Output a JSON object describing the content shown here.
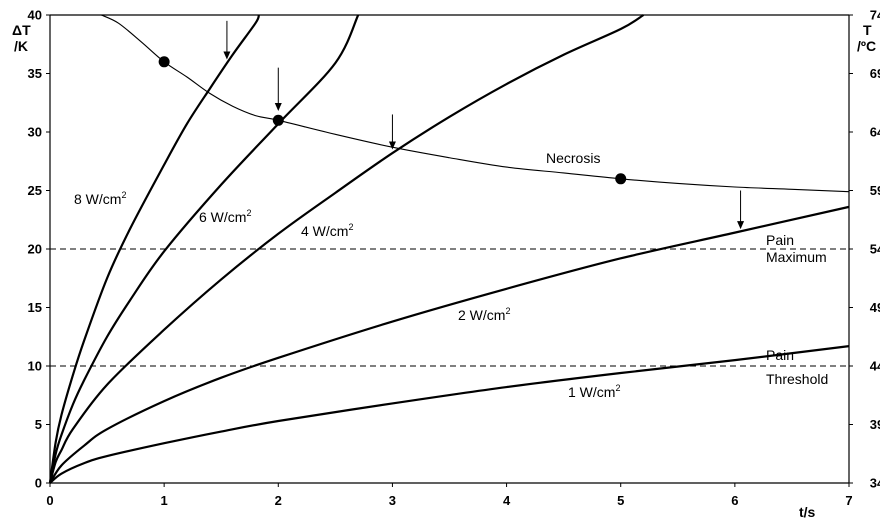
{
  "chart_data": {
    "type": "line",
    "x_label": "t/s",
    "y_label_left": [
      "ΔT",
      "/K"
    ],
    "y_label_right": [
      "T",
      "/ºC"
    ],
    "xlim": [
      0,
      7
    ],
    "ylim": [
      0,
      40
    ],
    "x_ticks": [
      "0",
      "1",
      "2",
      "3",
      "4",
      "5",
      "6",
      "7"
    ],
    "y_ticks_left": [
      "0",
      "5",
      "10",
      "15",
      "20",
      "25",
      "30",
      "35",
      "40"
    ],
    "y_ticks_right": [
      "34",
      "39",
      "44",
      "49",
      "54",
      "59",
      "64",
      "69",
      "74"
    ],
    "series": [
      {
        "name": "8 W/cm2",
        "label_base": "8 W/cm",
        "label_sup": "2",
        "x": [
          0,
          0.05,
          0.1,
          0.2,
          0.3,
          0.5,
          0.7,
          1,
          1.2,
          1.4,
          1.6,
          1.8,
          1.83
        ],
        "y": [
          0,
          3.5,
          5.8,
          9.2,
          12.2,
          17.5,
          21.7,
          27.2,
          30.7,
          33.7,
          36.6,
          39.3,
          40
        ]
      },
      {
        "name": "6 W/cm2",
        "label_base": "6 W/cm",
        "label_sup": "2",
        "x": [
          0,
          0.05,
          0.1,
          0.2,
          0.3,
          0.5,
          0.7,
          1,
          1.5,
          2,
          2.5,
          2.7
        ],
        "y": [
          0,
          2.5,
          4.1,
          6.7,
          8.8,
          12.5,
          15.6,
          19.8,
          25.5,
          30.7,
          35.9,
          40
        ]
      },
      {
        "name": "4 W/cm2",
        "label_base": "4 W/cm",
        "label_sup": "2",
        "x": [
          0,
          0.05,
          0.1,
          0.2,
          0.5,
          1,
          1.5,
          2,
          2.5,
          3,
          3.5,
          4,
          4.5,
          5,
          5.2
        ],
        "y": [
          0,
          1.8,
          2.8,
          4.6,
          8.4,
          13.1,
          17.4,
          21.3,
          24.8,
          28.2,
          31.3,
          34.1,
          36.6,
          38.8,
          40
        ]
      },
      {
        "name": "2 W/cm2",
        "label_base": "2 W/cm",
        "label_sup": "2",
        "x": [
          0,
          0.1,
          0.3,
          0.5,
          1,
          1.5,
          2,
          3,
          4,
          5,
          6,
          7
        ],
        "y": [
          0,
          1.5,
          3.2,
          4.6,
          7.0,
          9.0,
          10.7,
          13.8,
          16.6,
          19.2,
          21.4,
          23.6
        ]
      },
      {
        "name": "1 W/cm2",
        "label_base": "1 W/cm",
        "label_sup": "2",
        "x": [
          0,
          0.1,
          0.3,
          0.5,
          1,
          1.5,
          2,
          3,
          4,
          5,
          6,
          7
        ],
        "y": [
          0,
          0.8,
          1.7,
          2.3,
          3.4,
          4.4,
          5.3,
          6.8,
          8.2,
          9.4,
          10.5,
          11.7
        ]
      }
    ],
    "necrosis_curve": {
      "name": "Necrosis",
      "x": [
        0.45,
        0.6,
        0.8,
        1.0,
        1.2,
        1.4,
        1.6,
        1.8,
        2.0,
        2.5,
        3,
        3.5,
        4,
        4.5,
        5,
        5.5,
        6,
        6.5,
        7
      ],
      "y": [
        40,
        39.3,
        37.7,
        36,
        34.7,
        33.3,
        32.2,
        31.4,
        31,
        29.8,
        28.7,
        27.8,
        27,
        26.5,
        26,
        25.6,
        25.3,
        25.1,
        24.9
      ]
    },
    "markers": [
      {
        "x": 1,
        "y": 36
      },
      {
        "x": 2,
        "y": 31
      },
      {
        "x": 5,
        "y": 26
      }
    ],
    "arrows": [
      {
        "x": 1.55,
        "y_from": 39.5,
        "y_to": 36.2
      },
      {
        "x": 2.0,
        "y_from": 35.5,
        "y_to": 31.8
      },
      {
        "x": 3.0,
        "y_from": 31.5,
        "y_to": 28.5
      },
      {
        "x": 6.05,
        "y_from": 25.0,
        "y_to": 21.7
      }
    ],
    "reference_lines": [
      {
        "y": 20,
        "label_top": "Pain",
        "label_bottom": "Maximum"
      },
      {
        "y": 10,
        "label_top": "Pain",
        "label_bottom": "Threshold"
      }
    ],
    "grid": false
  }
}
